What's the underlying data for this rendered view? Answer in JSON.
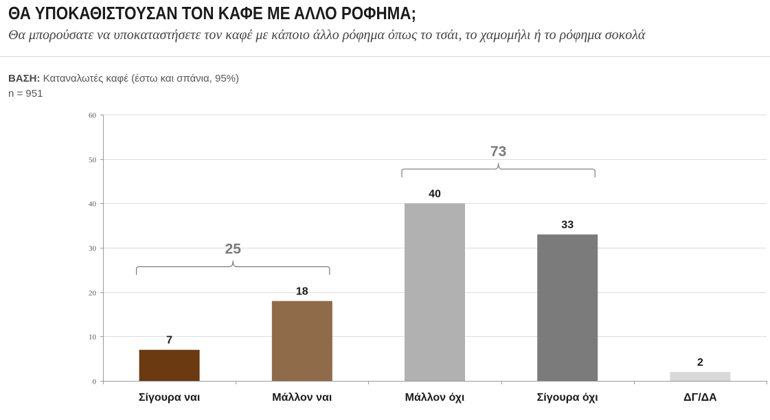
{
  "header": {
    "title": "ΘΑ ΥΠΟΚΑΘΙΣΤΟΥΣΑΝ ΤΟΝ ΚΑΦΕ ΜΕ ΑΛΛΟ ΡΟΦΗΜΑ;",
    "subtitle": "Θα μπορούσατε να υποκαταστήσετε τον καφέ με κάποιο άλλο ρόφημα όπως το τσάι, το χαμομήλι ή το ρόφημα σοκολά"
  },
  "base": {
    "label": "ΒΑΣΗ:",
    "text": "Καταναλωτές καφέ (έστω και σπάνια, 95%)",
    "n": "n = 951"
  },
  "chart_data": {
    "type": "bar",
    "categories": [
      "Σίγουρα ναι",
      "Μάλλον ναι",
      "Μάλλον όχι",
      "Σίγουρα όχι",
      "ΔΓ/ΔΑ"
    ],
    "values": [
      7,
      18,
      40,
      33,
      2
    ],
    "data_labels": [
      "7",
      "18",
      "40",
      "33",
      "2"
    ],
    "colors": [
      "#6b3a10",
      "#8f6b4a",
      "#b1b1b1",
      "#7b7b7b",
      "#d9d9d9"
    ],
    "ylim": [
      0,
      60
    ],
    "yticks": [
      0,
      10,
      20,
      30,
      40,
      50,
      60
    ],
    "grid": true,
    "groups": [
      {
        "label": "25",
        "from": 0,
        "to": 1
      },
      {
        "label": "73",
        "from": 2,
        "to": 3
      }
    ]
  }
}
